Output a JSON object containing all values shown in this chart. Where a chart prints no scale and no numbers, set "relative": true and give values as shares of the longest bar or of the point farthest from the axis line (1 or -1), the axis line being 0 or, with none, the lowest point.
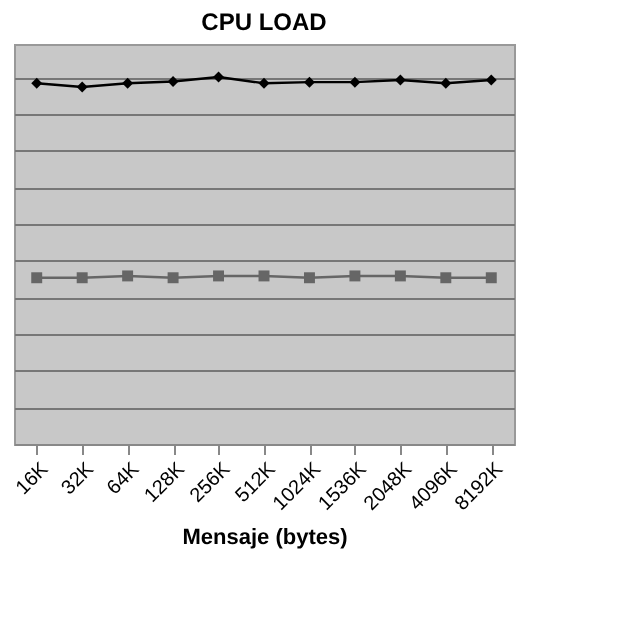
{
  "chart_data": {
    "type": "line",
    "title": "CPU LOAD",
    "xlabel": "Mensaje (bytes)",
    "relative": true,
    "grid": "y",
    "categories": [
      "16K",
      "32K",
      "64K",
      "128K",
      "256K",
      "512K",
      "1024K",
      "1536K",
      "2048K",
      "4096K",
      "8192K"
    ],
    "series": [
      {
        "color": "#000000",
        "marker": "diamond",
        "values": [
          0.983,
          0.973,
          0.983,
          0.988,
          1,
          0.983,
          0.986,
          0.986,
          0.992,
          0.983,
          0.992
        ]
      },
      {
        "color": "#666666",
        "marker": "square",
        "values": [
          0.453,
          0.453,
          0.458,
          0.453,
          0.458,
          0.458,
          0.453,
          0.458,
          0.458,
          0.453,
          0.453
        ]
      }
    ]
  }
}
